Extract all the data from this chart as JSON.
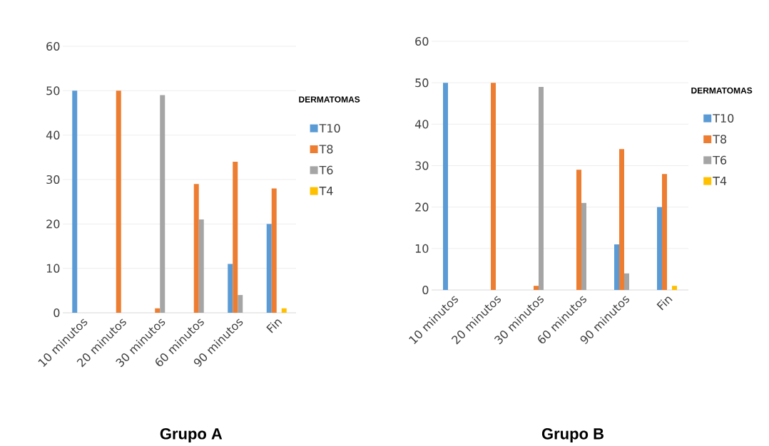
{
  "chart_data": [
    {
      "type": "bar",
      "title": "Grupo A",
      "legend_title": "DERMATOMAS",
      "categories": [
        "10 minutos",
        "20 minutos",
        "30 minutos",
        "60 minutos",
        "90 minutos",
        "Fin"
      ],
      "series": [
        {
          "name": "T10",
          "color": "#5b9bd5",
          "values": [
            50,
            0,
            0,
            0,
            11,
            20
          ]
        },
        {
          "name": "T8",
          "color": "#ed7d31",
          "values": [
            0,
            50,
            1,
            29,
            34,
            28
          ]
        },
        {
          "name": "T6",
          "color": "#a5a5a5",
          "values": [
            0,
            0,
            49,
            21,
            4,
            0
          ]
        },
        {
          "name": "T4",
          "color": "#ffc000",
          "values": [
            0,
            0,
            0,
            0,
            0,
            1
          ]
        }
      ],
      "ylim": [
        0,
        60
      ],
      "yticks": [
        0,
        10,
        20,
        30,
        40,
        50,
        60
      ],
      "grid": "y",
      "legend": "right"
    },
    {
      "type": "bar",
      "title": "Grupo B",
      "legend_title": "DERMATOMAS",
      "categories": [
        "10 minutos",
        "20 minutos",
        "30 minutos",
        "60 minutos",
        "90 minutos",
        "Fin"
      ],
      "series": [
        {
          "name": "T10",
          "color": "#5b9bd5",
          "values": [
            50,
            0,
            0,
            0,
            11,
            20
          ]
        },
        {
          "name": "T8",
          "color": "#ed7d31",
          "values": [
            0,
            50,
            1,
            29,
            34,
            28
          ]
        },
        {
          "name": "T6",
          "color": "#a5a5a5",
          "values": [
            0,
            0,
            49,
            21,
            4,
            0
          ]
        },
        {
          "name": "T4",
          "color": "#ffc000",
          "values": [
            0,
            0,
            0,
            0,
            0,
            1
          ]
        }
      ],
      "ylim": [
        0,
        60
      ],
      "yticks": [
        0,
        10,
        20,
        30,
        40,
        50,
        60
      ],
      "grid": "y",
      "legend": "right"
    }
  ]
}
